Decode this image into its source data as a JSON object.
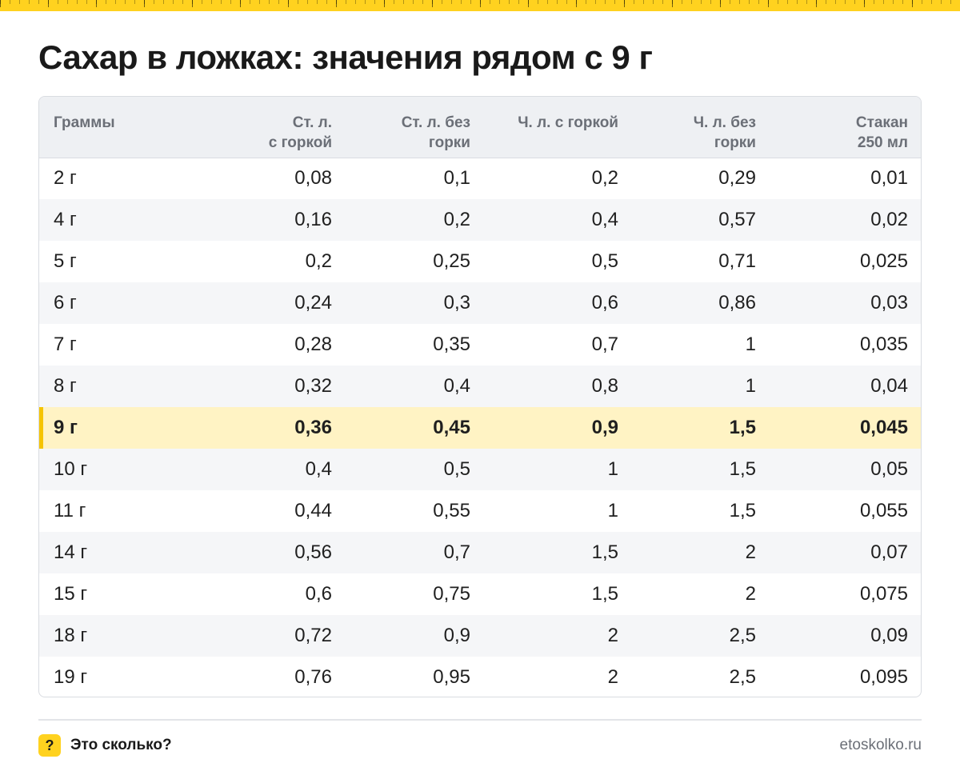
{
  "header": {
    "title": "Сахар в ложках: значения рядом с 9 г",
    "ruler_color": "#ffd21f"
  },
  "table": {
    "columns": [
      {
        "l1": "Граммы",
        "l2": ""
      },
      {
        "l1": "Ст. л.",
        "l2": "с горкой"
      },
      {
        "l1": "Ст. л. без",
        "l2": "горки"
      },
      {
        "l1": "Ч. л. с горкой",
        "l2": ""
      },
      {
        "l1": "Ч. л. без",
        "l2": "горки"
      },
      {
        "l1": "Стакан",
        "l2": "250 мл"
      }
    ],
    "rows": [
      [
        "2 г",
        "0,08",
        "0,1",
        "0,2",
        "0,29",
        "0,01"
      ],
      [
        "4 г",
        "0,16",
        "0,2",
        "0,4",
        "0,57",
        "0,02"
      ],
      [
        "5 г",
        "0,2",
        "0,25",
        "0,5",
        "0,71",
        "0,025"
      ],
      [
        "6 г",
        "0,24",
        "0,3",
        "0,6",
        "0,86",
        "0,03"
      ],
      [
        "7 г",
        "0,28",
        "0,35",
        "0,7",
        "1",
        "0,035"
      ],
      [
        "8 г",
        "0,32",
        "0,4",
        "0,8",
        "1",
        "0,04"
      ],
      [
        "9 г",
        "0,36",
        "0,45",
        "0,9",
        "1,5",
        "0,045"
      ],
      [
        "10 г",
        "0,4",
        "0,5",
        "1",
        "1,5",
        "0,05"
      ],
      [
        "11 г",
        "0,44",
        "0,55",
        "1",
        "1,5",
        "0,055"
      ],
      [
        "14 г",
        "0,56",
        "0,7",
        "1,5",
        "2",
        "0,07"
      ],
      [
        "15 г",
        "0,6",
        "0,75",
        "1,5",
        "2",
        "0,075"
      ],
      [
        "18 г",
        "0,72",
        "0,9",
        "2",
        "2,5",
        "0,09"
      ],
      [
        "19 г",
        "0,76",
        "0,95",
        "2",
        "2,5",
        "0,095"
      ]
    ],
    "highlight_row": 6,
    "highlight_color": "#fff3c4",
    "accent_color": "#f5c400"
  },
  "footer": {
    "badge_symbol": "?",
    "brand_name": "Это сколько?",
    "site": "etoskolko.ru"
  }
}
